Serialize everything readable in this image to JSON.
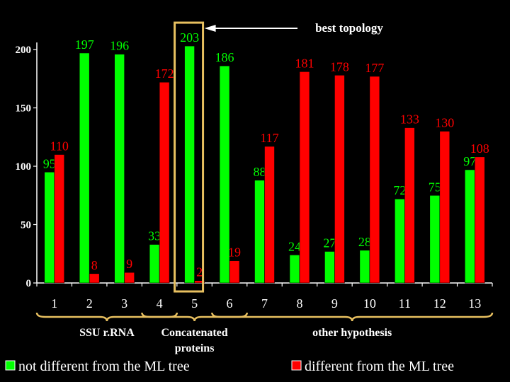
{
  "chart_data": {
    "type": "bar",
    "title": "",
    "xlabel": "",
    "ylabel": "",
    "ylim": [
      0,
      220
    ],
    "yticks": [
      0,
      50,
      100,
      150,
      200
    ],
    "categories": [
      "1",
      "2",
      "3",
      "4",
      "5",
      "6",
      "7",
      "8",
      "9",
      "10",
      "11",
      "12",
      "13"
    ],
    "series": [
      {
        "name": "not different from the ML tree",
        "color": "#00ff00",
        "values": [
          95,
          197,
          196,
          33,
          203,
          186,
          88,
          24,
          27,
          28,
          72,
          75,
          97
        ],
        "labels": [
          "95",
          "197",
          "196",
          "33",
          "203",
          "186",
          "88",
          "24",
          "27",
          "28",
          "72",
          "75",
          "97"
        ]
      },
      {
        "name": "different from the ML tree",
        "color": "#ff0000",
        "values": [
          110,
          8,
          9,
          172,
          2,
          19,
          117,
          181,
          178,
          177,
          133,
          130,
          108
        ],
        "labels": [
          "110",
          "8",
          "9",
          "172",
          "2",
          "19",
          "117",
          "181",
          "178",
          "177",
          "133",
          "130",
          "108"
        ]
      }
    ],
    "highlight": {
      "category": "5",
      "color": "#e8c060"
    },
    "annotation": {
      "text": "best topology"
    },
    "groups": [
      {
        "label": "SSU r.RNA",
        "from": "1",
        "to": "4"
      },
      {
        "label": "Concatenated\nproteins",
        "from": "4",
        "to": "6"
      },
      {
        "label": "other hypothesis",
        "from": "6",
        "to": "13"
      }
    ],
    "legend": {
      "placement": "bottom"
    },
    "grid": false
  }
}
